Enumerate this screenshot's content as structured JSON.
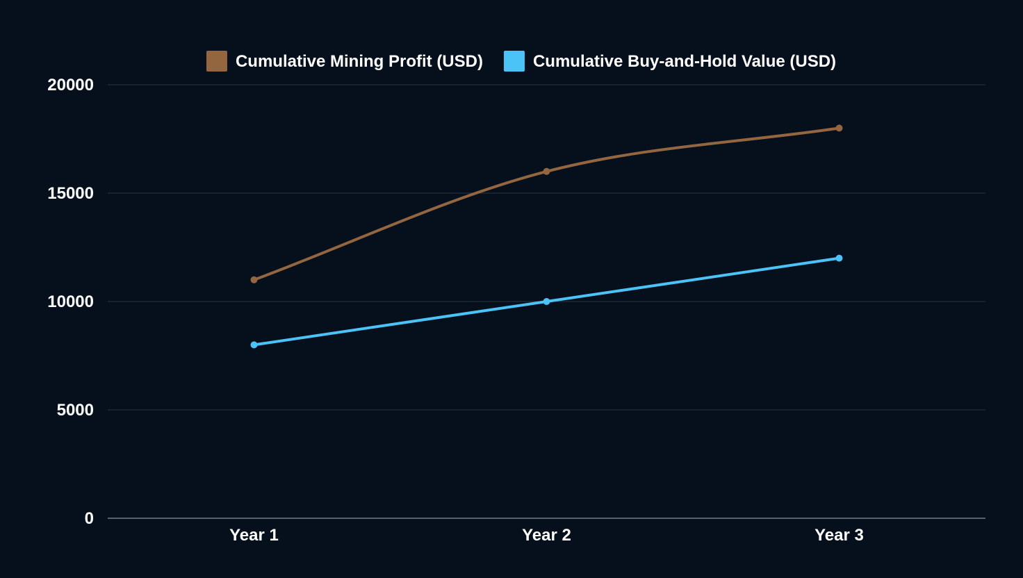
{
  "colors": {
    "background": "#06101c",
    "grid": "#2c3644",
    "text": "#ffffff"
  },
  "chart_data": {
    "type": "line",
    "title": "",
    "xlabel": "",
    "ylabel": "",
    "categories": [
      "Year 1",
      "Year 2",
      "Year 3"
    ],
    "ylim": [
      0,
      20000
    ],
    "yticks": [
      0,
      5000,
      10000,
      15000,
      20000
    ],
    "grid": true,
    "legend_position": "top-center",
    "series": [
      {
        "name": "Cumulative Mining Profit (USD)",
        "color": "#936640",
        "values": [
          11000,
          16000,
          18000
        ],
        "smooth": true
      },
      {
        "name": "Cumulative Buy-and-Hold Value (USD)",
        "color": "#4cc3f7",
        "values": [
          8000,
          10000,
          12000
        ],
        "smooth": false
      }
    ]
  }
}
